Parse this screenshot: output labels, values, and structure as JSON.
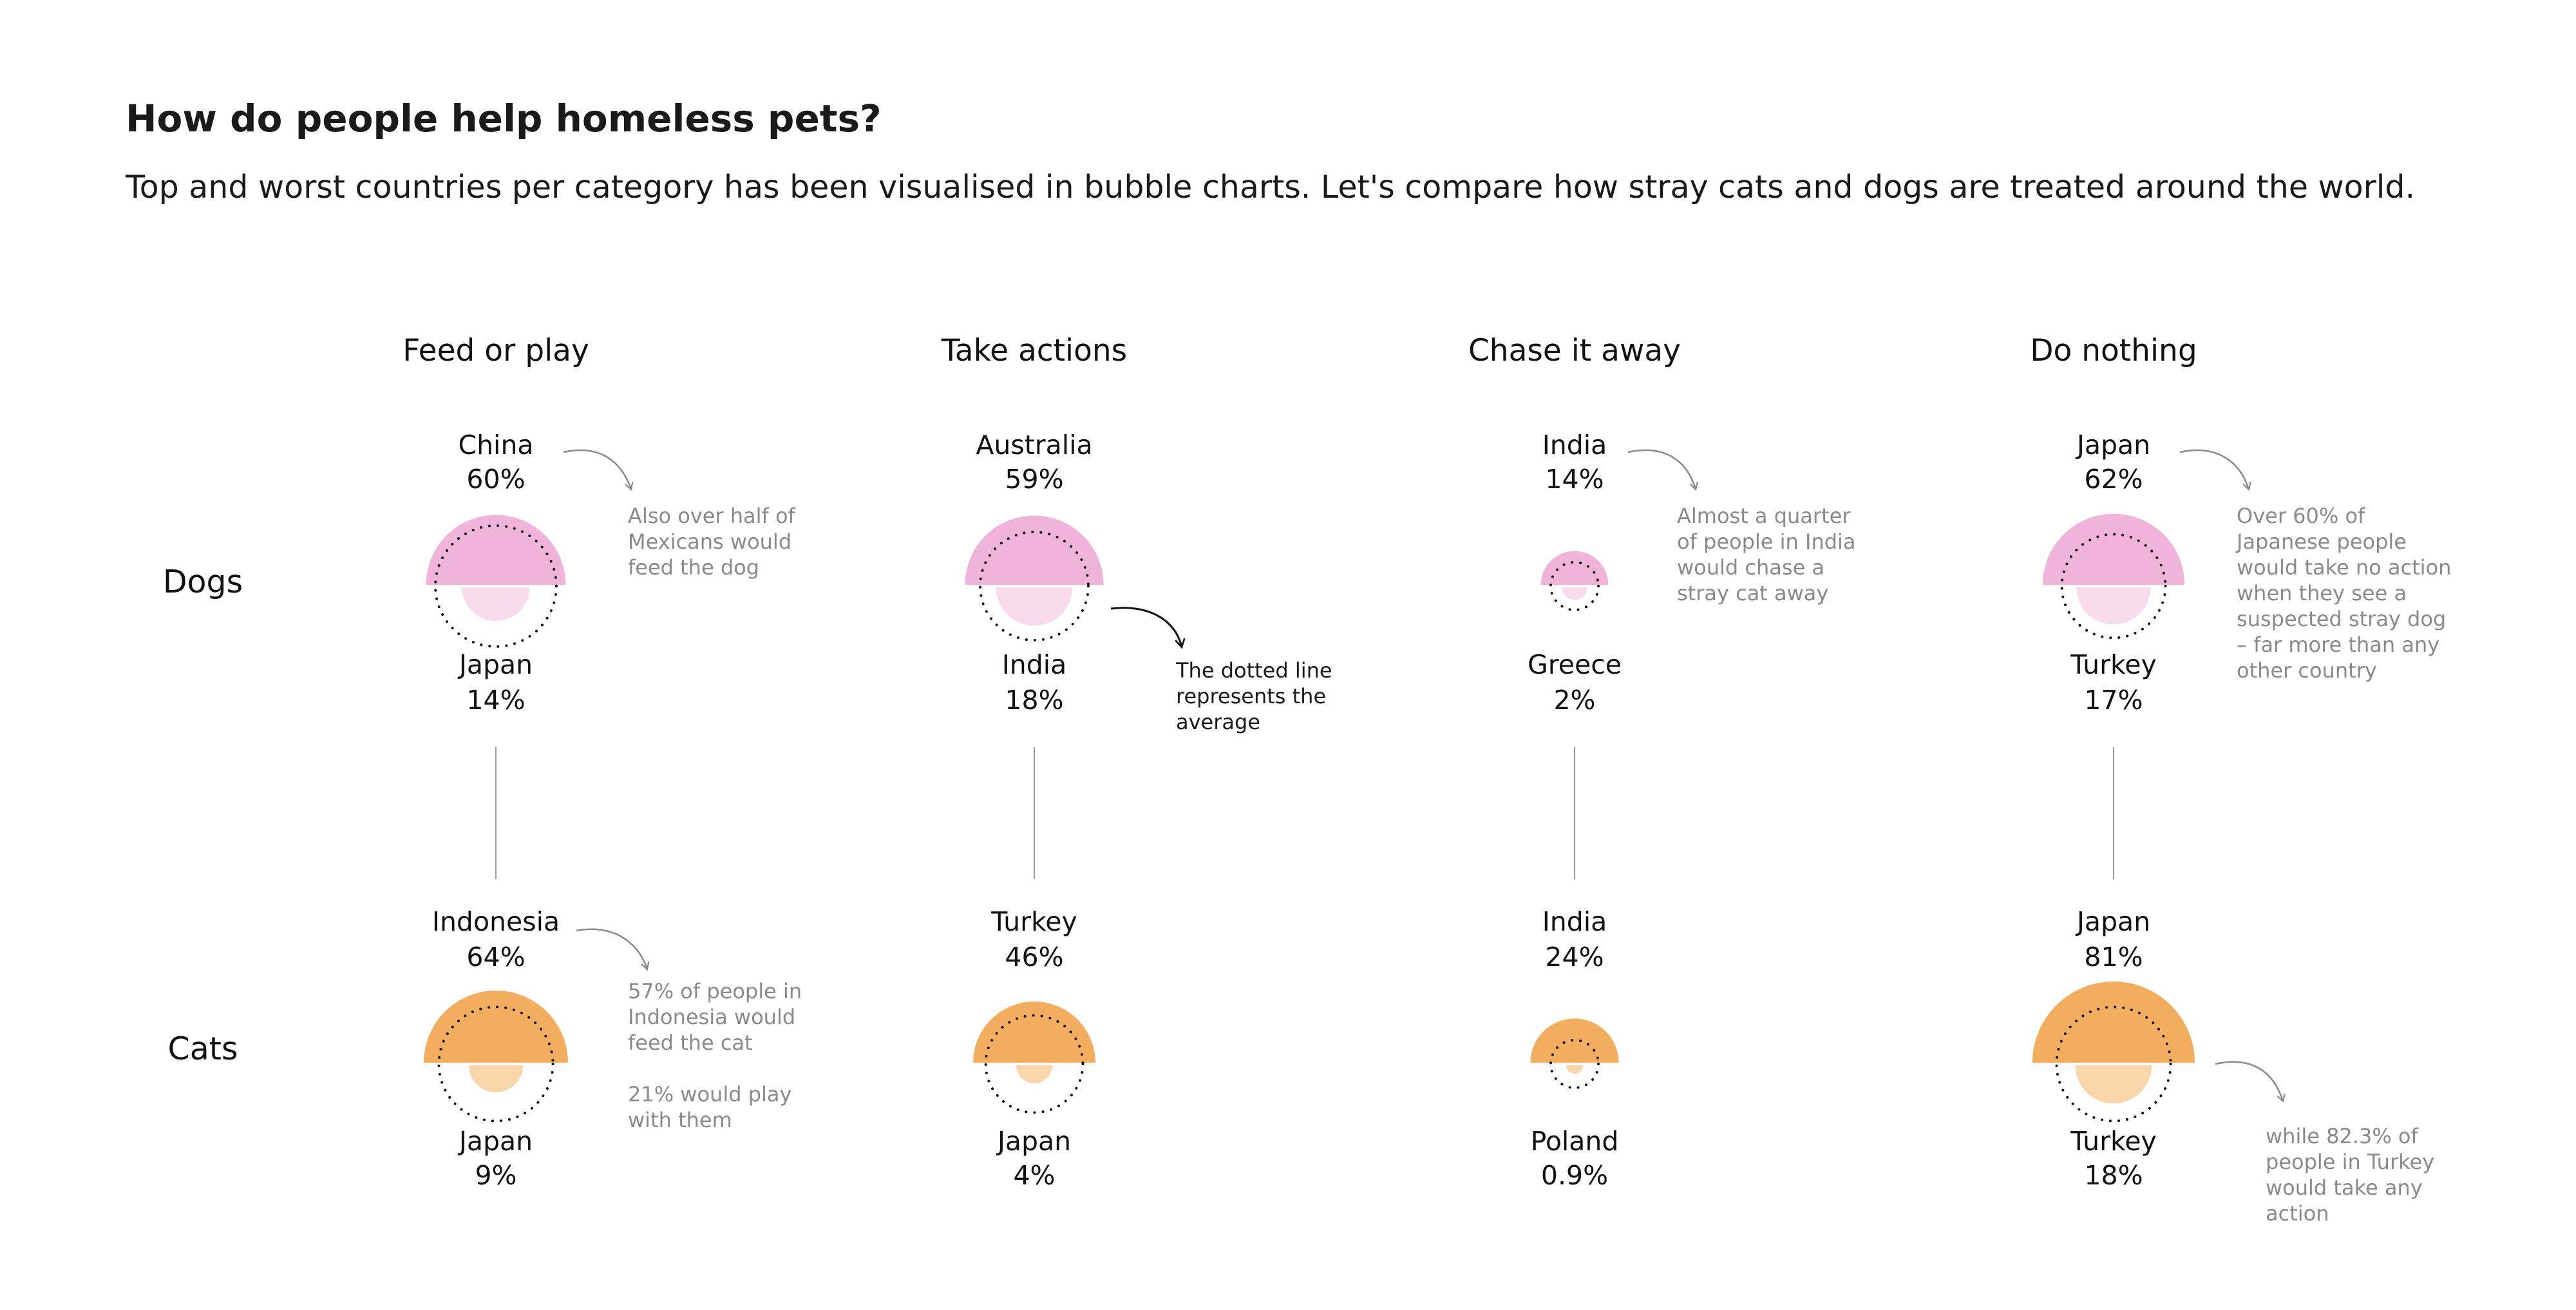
{
  "title": "How do people help homeless pets?",
  "subtitle": "Top and worst countries per category has been visualised in bubble charts. Let's compare how stray cats and dogs are treated around the world.",
  "colors": {
    "dogs_top": "#f0b3d9",
    "dogs_bottom": "#f8dced",
    "cats_top": "#f2ae5e",
    "cats_bottom": "#f8d6aa",
    "average_line": "#111111",
    "connector": "#999999",
    "note_gray": "#8a8a8a"
  },
  "chart_data": {
    "type": "bubble",
    "categories": [
      "Feed or play",
      "Take actions",
      "Chase it away",
      "Do nothing"
    ],
    "rows": [
      "Dogs",
      "Cats"
    ],
    "cells": [
      {
        "category": "Feed or play",
        "animal": "Dogs",
        "top": {
          "country": "China",
          "label": "60%",
          "value": 60
        },
        "bottom": {
          "country": "Japan",
          "label": "14%",
          "value": 14
        }
      },
      {
        "category": "Take actions",
        "animal": "Dogs",
        "top": {
          "country": "Australia",
          "label": "59%",
          "value": 59
        },
        "bottom": {
          "country": "India",
          "label": "18%",
          "value": 18
        }
      },
      {
        "category": "Chase it away",
        "animal": "Dogs",
        "top": {
          "country": "India",
          "label": "14%",
          "value": 14
        },
        "bottom": {
          "country": "Greece",
          "label": "2%",
          "value": 2
        }
      },
      {
        "category": "Do nothing",
        "animal": "Dogs",
        "top": {
          "country": "Japan",
          "label": "62%",
          "value": 62
        },
        "bottom": {
          "country": "Turkey",
          "label": "17%",
          "value": 17
        }
      },
      {
        "category": "Feed or play",
        "animal": "Cats",
        "top": {
          "country": "Indonesia",
          "label": "64%",
          "value": 64
        },
        "bottom": {
          "country": "Japan",
          "label": "9%",
          "value": 9
        }
      },
      {
        "category": "Take actions",
        "animal": "Cats",
        "top": {
          "country": "Turkey",
          "label": "46%",
          "value": 46
        },
        "bottom": {
          "country": "Japan",
          "label": "4%",
          "value": 4
        }
      },
      {
        "category": "Chase it away",
        "animal": "Cats",
        "top": {
          "country": "India",
          "label": "24%",
          "value": 24
        },
        "bottom": {
          "country": "Poland",
          "label": "0.9%",
          "value": 0.9
        }
      },
      {
        "category": "Do nothing",
        "animal": "Cats",
        "top": {
          "country": "Japan",
          "label": "81%",
          "value": 81
        },
        "bottom": {
          "country": "Turkey",
          "label": "18%",
          "value": 18
        }
      }
    ],
    "averages": [
      {
        "category": "Feed or play",
        "animal": "Dogs",
        "value": 45
      },
      {
        "category": "Take actions",
        "animal": "Dogs",
        "value": 36
      },
      {
        "category": "Chase it away",
        "animal": "Dogs",
        "value": 7
      },
      {
        "category": "Do nothing",
        "animal": "Dogs",
        "value": 33
      },
      {
        "category": "Feed or play",
        "animal": "Cats",
        "value": 40
      },
      {
        "category": "Take actions",
        "animal": "Cats",
        "value": 29
      },
      {
        "category": "Chase it away",
        "animal": "Cats",
        "value": 7
      },
      {
        "category": "Do nothing",
        "animal": "Cats",
        "value": 40
      }
    ],
    "annotations": [
      {
        "category": "Feed or play",
        "animal": "Dogs",
        "style": "gray",
        "lines": [
          "Also over half of",
          "Mexicans would",
          "feed the dog"
        ]
      },
      {
        "category": "Take actions",
        "animal": "Dogs",
        "style": "dark",
        "lines": [
          "The dotted line",
          "represents the",
          "average"
        ]
      },
      {
        "category": "Chase it away",
        "animal": "Dogs",
        "style": "gray",
        "lines": [
          "Almost a quarter",
          "of people in India",
          "would chase a",
          "stray cat away"
        ]
      },
      {
        "category": "Do nothing",
        "animal": "Dogs",
        "style": "gray",
        "lines": [
          "Over 60% of",
          "Japanese people",
          "would take no action",
          "when they see a",
          "suspected stray dog",
          "– far more than any",
          "other country"
        ]
      },
      {
        "category": "Feed or play",
        "animal": "Cats",
        "style": "gray",
        "lines": [
          "57% of people in",
          "Indonesia would",
          "feed the cat",
          "",
          "21% would play",
          "with them"
        ]
      },
      {
        "category": "Do nothing",
        "animal": "Cats",
        "style": "gray",
        "lines": [
          "while 82.3% of",
          "people in Turkey",
          "would take any",
          "action"
        ]
      }
    ]
  }
}
